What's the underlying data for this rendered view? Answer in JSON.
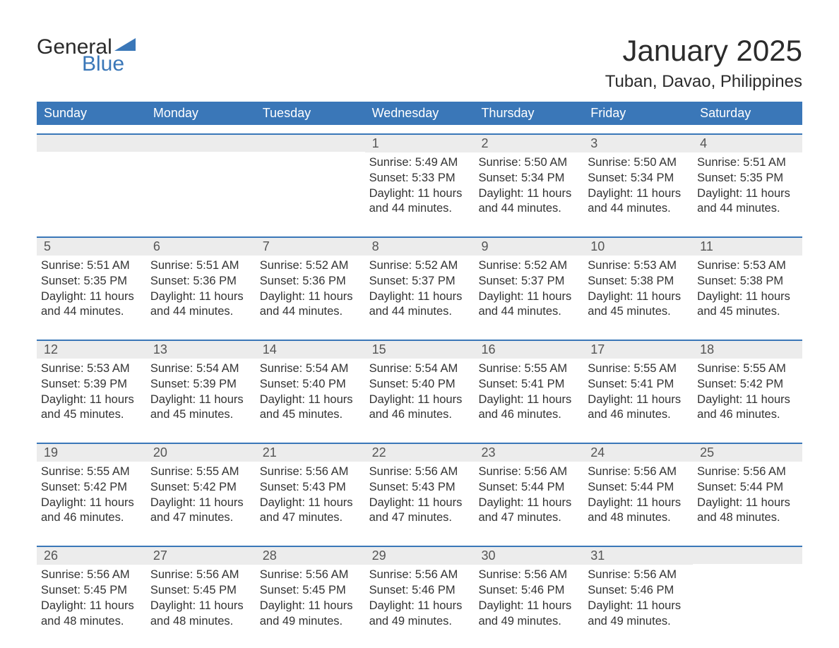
{
  "logo": {
    "text1": "General",
    "text2": "Blue",
    "triangle_color": "#3a77b8"
  },
  "title": "January 2025",
  "location": "Tuban, Davao, Philippines",
  "colors": {
    "header_bg": "#3a77b8",
    "header_text": "#ffffff",
    "daynum_bg": "#ececec",
    "daynum_text": "#555555",
    "body_text": "#333333",
    "rule": "#3a77b8",
    "page_bg": "#ffffff"
  },
  "typography": {
    "title_fontsize": 42,
    "location_fontsize": 24,
    "header_fontsize": 18,
    "daynum_fontsize": 18,
    "body_fontsize": 16.5,
    "font_family": "Arial"
  },
  "layout": {
    "columns": 7,
    "rows": 5
  },
  "day_headers": [
    "Sunday",
    "Monday",
    "Tuesday",
    "Wednesday",
    "Thursday",
    "Friday",
    "Saturday"
  ],
  "labels": {
    "sunrise": "Sunrise:",
    "sunset": "Sunset:",
    "daylight": "Daylight:"
  },
  "weeks": [
    [
      null,
      null,
      null,
      {
        "n": "1",
        "sunrise": "5:49 AM",
        "sunset": "5:33 PM",
        "daylight": "11 hours and 44 minutes."
      },
      {
        "n": "2",
        "sunrise": "5:50 AM",
        "sunset": "5:34 PM",
        "daylight": "11 hours and 44 minutes."
      },
      {
        "n": "3",
        "sunrise": "5:50 AM",
        "sunset": "5:34 PM",
        "daylight": "11 hours and 44 minutes."
      },
      {
        "n": "4",
        "sunrise": "5:51 AM",
        "sunset": "5:35 PM",
        "daylight": "11 hours and 44 minutes."
      }
    ],
    [
      {
        "n": "5",
        "sunrise": "5:51 AM",
        "sunset": "5:35 PM",
        "daylight": "11 hours and 44 minutes."
      },
      {
        "n": "6",
        "sunrise": "5:51 AM",
        "sunset": "5:36 PM",
        "daylight": "11 hours and 44 minutes."
      },
      {
        "n": "7",
        "sunrise": "5:52 AM",
        "sunset": "5:36 PM",
        "daylight": "11 hours and 44 minutes."
      },
      {
        "n": "8",
        "sunrise": "5:52 AM",
        "sunset": "5:37 PM",
        "daylight": "11 hours and 44 minutes."
      },
      {
        "n": "9",
        "sunrise": "5:52 AM",
        "sunset": "5:37 PM",
        "daylight": "11 hours and 44 minutes."
      },
      {
        "n": "10",
        "sunrise": "5:53 AM",
        "sunset": "5:38 PM",
        "daylight": "11 hours and 45 minutes."
      },
      {
        "n": "11",
        "sunrise": "5:53 AM",
        "sunset": "5:38 PM",
        "daylight": "11 hours and 45 minutes."
      }
    ],
    [
      {
        "n": "12",
        "sunrise": "5:53 AM",
        "sunset": "5:39 PM",
        "daylight": "11 hours and 45 minutes."
      },
      {
        "n": "13",
        "sunrise": "5:54 AM",
        "sunset": "5:39 PM",
        "daylight": "11 hours and 45 minutes."
      },
      {
        "n": "14",
        "sunrise": "5:54 AM",
        "sunset": "5:40 PM",
        "daylight": "11 hours and 45 minutes."
      },
      {
        "n": "15",
        "sunrise": "5:54 AM",
        "sunset": "5:40 PM",
        "daylight": "11 hours and 46 minutes."
      },
      {
        "n": "16",
        "sunrise": "5:55 AM",
        "sunset": "5:41 PM",
        "daylight": "11 hours and 46 minutes."
      },
      {
        "n": "17",
        "sunrise": "5:55 AM",
        "sunset": "5:41 PM",
        "daylight": "11 hours and 46 minutes."
      },
      {
        "n": "18",
        "sunrise": "5:55 AM",
        "sunset": "5:42 PM",
        "daylight": "11 hours and 46 minutes."
      }
    ],
    [
      {
        "n": "19",
        "sunrise": "5:55 AM",
        "sunset": "5:42 PM",
        "daylight": "11 hours and 46 minutes."
      },
      {
        "n": "20",
        "sunrise": "5:55 AM",
        "sunset": "5:42 PM",
        "daylight": "11 hours and 47 minutes."
      },
      {
        "n": "21",
        "sunrise": "5:56 AM",
        "sunset": "5:43 PM",
        "daylight": "11 hours and 47 minutes."
      },
      {
        "n": "22",
        "sunrise": "5:56 AM",
        "sunset": "5:43 PM",
        "daylight": "11 hours and 47 minutes."
      },
      {
        "n": "23",
        "sunrise": "5:56 AM",
        "sunset": "5:44 PM",
        "daylight": "11 hours and 47 minutes."
      },
      {
        "n": "24",
        "sunrise": "5:56 AM",
        "sunset": "5:44 PM",
        "daylight": "11 hours and 48 minutes."
      },
      {
        "n": "25",
        "sunrise": "5:56 AM",
        "sunset": "5:44 PM",
        "daylight": "11 hours and 48 minutes."
      }
    ],
    [
      {
        "n": "26",
        "sunrise": "5:56 AM",
        "sunset": "5:45 PM",
        "daylight": "11 hours and 48 minutes."
      },
      {
        "n": "27",
        "sunrise": "5:56 AM",
        "sunset": "5:45 PM",
        "daylight": "11 hours and 48 minutes."
      },
      {
        "n": "28",
        "sunrise": "5:56 AM",
        "sunset": "5:45 PM",
        "daylight": "11 hours and 49 minutes."
      },
      {
        "n": "29",
        "sunrise": "5:56 AM",
        "sunset": "5:46 PM",
        "daylight": "11 hours and 49 minutes."
      },
      {
        "n": "30",
        "sunrise": "5:56 AM",
        "sunset": "5:46 PM",
        "daylight": "11 hours and 49 minutes."
      },
      {
        "n": "31",
        "sunrise": "5:56 AM",
        "sunset": "5:46 PM",
        "daylight": "11 hours and 49 minutes."
      },
      null
    ]
  ]
}
